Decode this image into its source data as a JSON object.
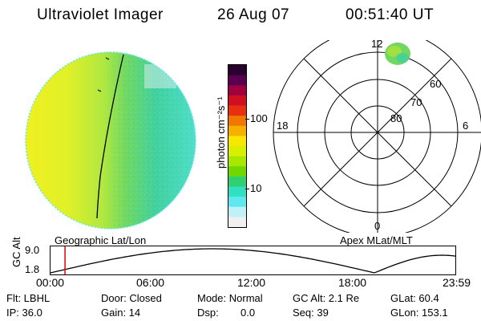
{
  "header": {
    "instrument": "Ultraviolet Imager",
    "date": "26 Aug 07",
    "time": "00:51:40 UT"
  },
  "colorbar": {
    "unit": "photon cm⁻²s⁻¹",
    "ticks": [
      "100",
      "10"
    ],
    "colors": [
      "#2a0030",
      "#5a0050",
      "#a00040",
      "#d01020",
      "#e83010",
      "#f07800",
      "#f8b000",
      "#f8e800",
      "#d8f000",
      "#a8e800",
      "#70d800",
      "#30d070",
      "#30e0c0",
      "#60e8f0",
      "#c0f0f8",
      "#f0f0f0"
    ]
  },
  "polar_plot": {
    "title": "Apex MLat/MLT",
    "mlt_labels": [
      "12",
      "18",
      "6",
      "0"
    ],
    "lat_labels": [
      "60",
      "70",
      "80"
    ]
  },
  "disk": {
    "title": "Geographic Lat/Lon",
    "colors": {
      "warm": "#e8f030",
      "mid": "#a0e040",
      "cool": "#40d0a0",
      "edge": "#60e8f0"
    }
  },
  "orbit": {
    "ylabel": "GC Alt",
    "ytick_labels": [
      "9.0",
      "1.8"
    ],
    "xtick_labels": [
      "00:00",
      "06:00",
      "12:00",
      "18:00",
      "23:59"
    ],
    "x_range_hours": [
      0,
      24
    ],
    "current_time_hours": 0.86,
    "marker_color": "#e00000"
  },
  "info": {
    "filter": "Flt: LBHL",
    "door": "Door: Closed",
    "mode": "Mode: Normal",
    "gc_alt": "GC Alt: 2.1 Re",
    "glat": "GLat: 60.4",
    "ip": "IP: 36.0",
    "gain": "Gain: 14",
    "dsp_label": "Dsp:",
    "dsp_value": "0.0",
    "seq": "Seq: 39",
    "glon": "GLon: 153.1"
  }
}
